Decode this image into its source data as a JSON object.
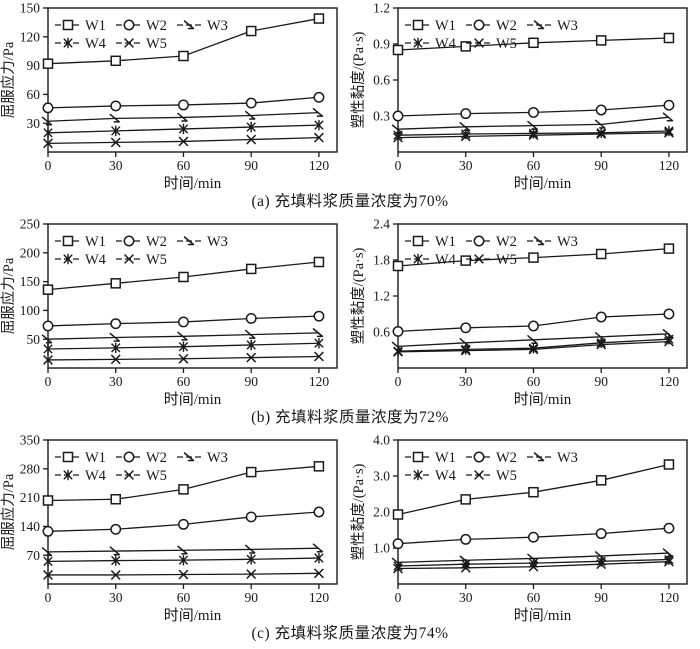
{
  "page": {
    "background": "#ffffff",
    "ink": "#1a1a1a"
  },
  "figure": {
    "xlabel": "时间/min",
    "series_names": [
      "W1",
      "W2",
      "W3",
      "W4",
      "W5"
    ],
    "legend_layout": [
      [
        "W1",
        "W2",
        "W3"
      ],
      [
        "W4",
        "W5"
      ]
    ]
  },
  "captions": [
    "(a) 充填料浆质量浓度为70%",
    "(b) 充填料浆质量浓度为72%",
    "(c) 充填料浆质量浓度为74%"
  ],
  "chart_data": [
    {
      "panel": "a-left",
      "type": "line",
      "legend_position": "top-left",
      "grid": false,
      "xlabel": "时间/min",
      "ylabel": "屈服应力/Pa",
      "x": [
        0,
        30,
        60,
        90,
        120
      ],
      "xlim": [
        0,
        128
      ],
      "ylim": [
        0,
        150
      ],
      "yticks": [
        30,
        60,
        90,
        120,
        150
      ],
      "ytick_labels": [
        "30",
        "60",
        "90",
        "120",
        "150"
      ],
      "xtick_labels": [
        "0",
        "30",
        "60",
        "90",
        "120"
      ],
      "series": [
        {
          "name": "W1",
          "marker": "square",
          "values": [
            92,
            95,
            100,
            126,
            139
          ]
        },
        {
          "name": "W2",
          "marker": "circle",
          "values": [
            46,
            48,
            49,
            51,
            57
          ]
        },
        {
          "name": "W3",
          "marker": "tick",
          "values": [
            32,
            35,
            36,
            38,
            41
          ]
        },
        {
          "name": "W4",
          "marker": "asterisk",
          "values": [
            20,
            22,
            24,
            26,
            28
          ]
        },
        {
          "name": "W5",
          "marker": "x",
          "values": [
            9,
            10,
            11,
            13,
            15
          ]
        }
      ]
    },
    {
      "panel": "a-right",
      "type": "line",
      "legend_position": "top-left",
      "grid": false,
      "xlabel": "时间/min",
      "ylabel": "塑性黏度/(Pa·s)",
      "x": [
        0,
        30,
        60,
        90,
        120
      ],
      "xlim": [
        0,
        128
      ],
      "ylim": [
        0,
        1.2
      ],
      "yticks": [
        0.3,
        0.6,
        0.9,
        1.2
      ],
      "ytick_labels": [
        "0.3",
        "0.6",
        "0.9",
        "1.2"
      ],
      "xtick_labels": [
        "0",
        "30",
        "60",
        "90",
        "120"
      ],
      "series": [
        {
          "name": "W1",
          "marker": "square",
          "values": [
            0.85,
            0.88,
            0.91,
            0.93,
            0.95
          ]
        },
        {
          "name": "W2",
          "marker": "circle",
          "values": [
            0.3,
            0.32,
            0.33,
            0.35,
            0.39
          ]
        },
        {
          "name": "W3",
          "marker": "tick",
          "values": [
            0.19,
            0.21,
            0.22,
            0.23,
            0.29
          ]
        },
        {
          "name": "W4",
          "marker": "asterisk",
          "values": [
            0.14,
            0.15,
            0.155,
            0.16,
            0.175
          ]
        },
        {
          "name": "W5",
          "marker": "x",
          "values": [
            0.12,
            0.13,
            0.14,
            0.15,
            0.16
          ]
        }
      ]
    },
    {
      "panel": "b-left",
      "type": "line",
      "legend_position": "top-left",
      "grid": false,
      "xlabel": "时间/min",
      "ylabel": "屈服应力/Pa",
      "x": [
        0,
        30,
        60,
        90,
        120
      ],
      "xlim": [
        0,
        128
      ],
      "ylim": [
        0,
        250
      ],
      "yticks": [
        50,
        100,
        150,
        200,
        250
      ],
      "ytick_labels": [
        "50",
        "100",
        "150",
        "200",
        "250"
      ],
      "xtick_labels": [
        "0",
        "30",
        "60",
        "90",
        "120"
      ],
      "series": [
        {
          "name": "W1",
          "marker": "square",
          "values": [
            136,
            147,
            158,
            172,
            184
          ]
        },
        {
          "name": "W2",
          "marker": "circle",
          "values": [
            73,
            77,
            80,
            86,
            90
          ]
        },
        {
          "name": "W3",
          "marker": "tick",
          "values": [
            50,
            53,
            55,
            58,
            61
          ]
        },
        {
          "name": "W4",
          "marker": "asterisk",
          "values": [
            33,
            35,
            37,
            40,
            43
          ]
        },
        {
          "name": "W5",
          "marker": "x",
          "values": [
            14,
            15,
            16,
            18,
            20
          ]
        }
      ]
    },
    {
      "panel": "b-right",
      "type": "line",
      "legend_position": "top-left",
      "grid": false,
      "xlabel": "时间/min",
      "ylabel": "塑性黏度/(Pa·s)",
      "x": [
        0,
        30,
        60,
        90,
        120
      ],
      "xlim": [
        0,
        128
      ],
      "ylim": [
        0,
        2.4
      ],
      "yticks": [
        0.6,
        1.2,
        1.8,
        2.4
      ],
      "ytick_labels": [
        "0.6",
        "1.2",
        "1.8",
        "2.4"
      ],
      "xtick_labels": [
        "0",
        "30",
        "60",
        "90",
        "120"
      ],
      "series": [
        {
          "name": "W1",
          "marker": "square",
          "values": [
            1.7,
            1.79,
            1.84,
            1.9,
            1.99
          ]
        },
        {
          "name": "W2",
          "marker": "circle",
          "values": [
            0.61,
            0.67,
            0.7,
            0.85,
            0.9
          ]
        },
        {
          "name": "W3",
          "marker": "tick",
          "values": [
            0.36,
            0.42,
            0.47,
            0.52,
            0.57
          ]
        },
        {
          "name": "W4",
          "marker": "asterisk",
          "values": [
            0.28,
            0.31,
            0.33,
            0.42,
            0.48
          ]
        },
        {
          "name": "W5",
          "marker": "x",
          "values": [
            0.27,
            0.29,
            0.31,
            0.39,
            0.44
          ]
        }
      ]
    },
    {
      "panel": "c-left",
      "type": "line",
      "legend_position": "top-left",
      "grid": false,
      "xlabel": "时间/min",
      "ylabel": "屈服应力/Pa",
      "x": [
        0,
        30,
        60,
        90,
        120
      ],
      "xlim": [
        0,
        128
      ],
      "ylim": [
        0,
        350
      ],
      "yticks": [
        70,
        140,
        210,
        280,
        350
      ],
      "ytick_labels": [
        "70",
        "140",
        "210",
        "280",
        "350"
      ],
      "xtick_labels": [
        "0",
        "30",
        "60",
        "90",
        "120"
      ],
      "series": [
        {
          "name": "W1",
          "marker": "square",
          "values": [
            203,
            206,
            230,
            272,
            286
          ]
        },
        {
          "name": "W2",
          "marker": "circle",
          "values": [
            128,
            133,
            145,
            163,
            175
          ]
        },
        {
          "name": "W3",
          "marker": "tick",
          "values": [
            78,
            80,
            82,
            84,
            87
          ]
        },
        {
          "name": "W4",
          "marker": "asterisk",
          "values": [
            55,
            57,
            58,
            60,
            63
          ]
        },
        {
          "name": "W5",
          "marker": "x",
          "values": [
            22,
            22,
            23,
            24,
            26
          ]
        }
      ]
    },
    {
      "panel": "c-right",
      "type": "line",
      "legend_position": "top-left",
      "grid": false,
      "xlabel": "时间/min",
      "ylabel": "塑性黏度/(Pa·s)",
      "x": [
        0,
        30,
        60,
        90,
        120
      ],
      "xlim": [
        0,
        128
      ],
      "ylim": [
        0,
        4.0
      ],
      "yticks": [
        1.0,
        2.0,
        3.0,
        4.0
      ],
      "ytick_labels": [
        "1.0",
        "2.0",
        "3.0",
        "4.0"
      ],
      "xtick_labels": [
        "0",
        "30",
        "60",
        "90",
        "120"
      ],
      "series": [
        {
          "name": "W1",
          "marker": "square",
          "values": [
            1.93,
            2.35,
            2.55,
            2.88,
            3.32
          ]
        },
        {
          "name": "W2",
          "marker": "circle",
          "values": [
            1.12,
            1.24,
            1.3,
            1.4,
            1.55
          ]
        },
        {
          "name": "W3",
          "marker": "tick",
          "values": [
            0.6,
            0.66,
            0.71,
            0.78,
            0.86
          ]
        },
        {
          "name": "W4",
          "marker": "asterisk",
          "values": [
            0.5,
            0.55,
            0.58,
            0.63,
            0.68
          ]
        },
        {
          "name": "W5",
          "marker": "x",
          "values": [
            0.43,
            0.45,
            0.48,
            0.55,
            0.62
          ]
        }
      ]
    }
  ]
}
